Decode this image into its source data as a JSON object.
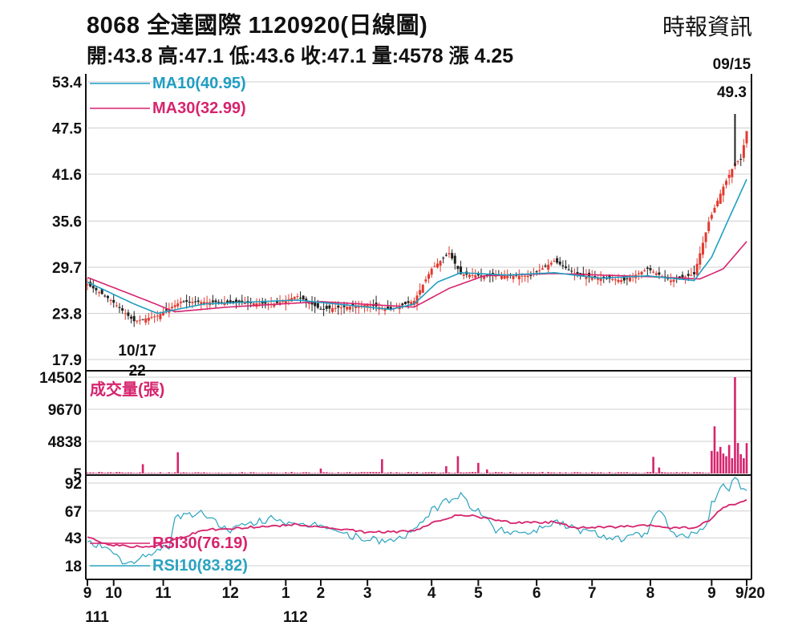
{
  "header": {
    "title": "8068  全達國際 1120920(日線圖)",
    "ohlc": "開:43.8 高:47.1 低:43.6 收:47.1 量:4578 漲 4.25",
    "source": "時報資訊"
  },
  "colors": {
    "up": "#e23a2f",
    "down": "#222222",
    "ma10": "#1f9ec2",
    "ma30": "#d6246e",
    "volume": "#d6246e",
    "rsi30": "#d6246e",
    "rsi10": "#2aa3c0",
    "grid": "#cfcfcf"
  },
  "chart_data": [
    {
      "type": "candlestick",
      "name": "price",
      "y_ticks": [
        "53.4",
        "47.5",
        "41.6",
        "35.6",
        "29.7",
        "23.8",
        "17.9"
      ],
      "ylim": [
        17.9,
        53.4
      ],
      "legend": [
        {
          "label": "MA10(40.95)",
          "color": "#1f9ec2"
        },
        {
          "label": "MA30(32.99)",
          "color": "#d6246e"
        }
      ],
      "annotations": [
        {
          "text": "09/15",
          "text2": "49.3",
          "x": 222,
          "y": 49.3
        },
        {
          "text": "10/17",
          "text2": "22",
          "x": 16,
          "y": 22
        }
      ],
      "close_anchors": [
        [
          0,
          27.5
        ],
        [
          8,
          25.5
        ],
        [
          16,
          22.8
        ],
        [
          24,
          23.5
        ],
        [
          32,
          25.3
        ],
        [
          48,
          25.2
        ],
        [
          64,
          25.0
        ],
        [
          72,
          26.0
        ],
        [
          80,
          24.3
        ],
        [
          96,
          24.9
        ],
        [
          104,
          24.3
        ],
        [
          112,
          25.4
        ],
        [
          118,
          29.5
        ],
        [
          124,
          31.5
        ],
        [
          128,
          28.8
        ],
        [
          136,
          28.6
        ],
        [
          152,
          28.6
        ],
        [
          160,
          30.5
        ],
        [
          168,
          28.7
        ],
        [
          184,
          28.0
        ],
        [
          192,
          29.5
        ],
        [
          200,
          28.0
        ],
        [
          208,
          28.8
        ],
        [
          213,
          35.5
        ],
        [
          218,
          40.0
        ],
        [
          222,
          43.0
        ],
        [
          224,
          43.5
        ],
        [
          226,
          47.1
        ]
      ],
      "ma10_anchors": [
        [
          0,
          27.8
        ],
        [
          16,
          25.0
        ],
        [
          24,
          23.8
        ],
        [
          40,
          25.0
        ],
        [
          72,
          25.5
        ],
        [
          96,
          24.6
        ],
        [
          104,
          24.3
        ],
        [
          112,
          25.0
        ],
        [
          120,
          27.8
        ],
        [
          128,
          29.0
        ],
        [
          144,
          28.7
        ],
        [
          160,
          29.0
        ],
        [
          176,
          28.3
        ],
        [
          192,
          28.6
        ],
        [
          208,
          28.0
        ],
        [
          214,
          31.0
        ],
        [
          220,
          36.0
        ],
        [
          226,
          40.95
        ]
      ],
      "ma30_anchors": [
        [
          0,
          28.4
        ],
        [
          20,
          25.5
        ],
        [
          30,
          24.0
        ],
        [
          48,
          24.6
        ],
        [
          80,
          25.3
        ],
        [
          112,
          24.6
        ],
        [
          124,
          27.0
        ],
        [
          136,
          28.6
        ],
        [
          160,
          28.9
        ],
        [
          192,
          28.5
        ],
        [
          210,
          28.2
        ],
        [
          218,
          29.5
        ],
        [
          226,
          32.99
        ]
      ]
    },
    {
      "type": "bar",
      "name": "volume",
      "label": "成交量(張)",
      "y_ticks": [
        "14502",
        "9670",
        "4838",
        "5"
      ],
      "ylim": [
        5,
        14502
      ],
      "spikes": [
        [
          19,
          1400
        ],
        [
          31,
          3200
        ],
        [
          80,
          750
        ],
        [
          101,
          2150
        ],
        [
          123,
          1100
        ],
        [
          127,
          2600
        ],
        [
          134,
          1600
        ],
        [
          137,
          600
        ],
        [
          194,
          2500
        ],
        [
          196,
          900
        ],
        [
          214,
          3400
        ],
        [
          215,
          7100
        ],
        [
          216,
          3300
        ],
        [
          217,
          4000
        ],
        [
          218,
          3000
        ],
        [
          219,
          2600
        ],
        [
          220,
          4300
        ],
        [
          221,
          2300
        ],
        [
          222,
          14502
        ],
        [
          223,
          4600
        ],
        [
          224,
          2900
        ],
        [
          225,
          2300
        ],
        [
          226,
          4578
        ]
      ]
    },
    {
      "type": "line",
      "name": "rsi",
      "y_ticks": [
        "92",
        "67",
        "43",
        "18"
      ],
      "legend": [
        {
          "label": "RSI30(76.19)",
          "color": "#d6246e"
        },
        {
          "label": "RSI10(83.82)",
          "color": "#2aa3c0"
        }
      ],
      "rsi30_anchors": [
        [
          0,
          43
        ],
        [
          8,
          37
        ],
        [
          16,
          35
        ],
        [
          24,
          36
        ],
        [
          28,
          40
        ],
        [
          40,
          50
        ],
        [
          72,
          55
        ],
        [
          96,
          48
        ],
        [
          112,
          49
        ],
        [
          120,
          58
        ],
        [
          128,
          64
        ],
        [
          136,
          61
        ],
        [
          144,
          57
        ],
        [
          160,
          57
        ],
        [
          168,
          52
        ],
        [
          184,
          53
        ],
        [
          194,
          54
        ],
        [
          200,
          52
        ],
        [
          208,
          52
        ],
        [
          213,
          58
        ],
        [
          218,
          70
        ],
        [
          220,
          72
        ],
        [
          226,
          76.19
        ]
      ],
      "rsi10_anchors": [
        [
          0,
          42
        ],
        [
          6,
          33
        ],
        [
          12,
          22
        ],
        [
          16,
          20
        ],
        [
          22,
          30
        ],
        [
          28,
          36
        ],
        [
          30,
          62
        ],
        [
          40,
          65
        ],
        [
          48,
          50
        ],
        [
          56,
          55
        ],
        [
          64,
          62
        ],
        [
          72,
          52
        ],
        [
          80,
          56
        ],
        [
          88,
          46
        ],
        [
          96,
          42
        ],
        [
          104,
          40
        ],
        [
          112,
          48
        ],
        [
          118,
          68
        ],
        [
          124,
          76
        ],
        [
          128,
          82
        ],
        [
          132,
          70
        ],
        [
          136,
          62
        ],
        [
          140,
          50
        ],
        [
          152,
          48
        ],
        [
          160,
          58
        ],
        [
          166,
          52
        ],
        [
          176,
          46
        ],
        [
          184,
          42
        ],
        [
          192,
          48
        ],
        [
          196,
          68
        ],
        [
          202,
          42
        ],
        [
          208,
          48
        ],
        [
          212,
          52
        ],
        [
          214,
          74
        ],
        [
          218,
          90
        ],
        [
          220,
          88
        ],
        [
          222,
          95
        ],
        [
          226,
          83.82
        ]
      ]
    }
  ],
  "x_axis": {
    "month_labels": [
      {
        "label": "9",
        "i": 0
      },
      {
        "label": "10",
        "i": 9
      },
      {
        "label": "11",
        "i": 26
      },
      {
        "label": "12",
        "i": 49
      },
      {
        "label": "1",
        "i": 68
      },
      {
        "label": "2",
        "i": 80
      },
      {
        "label": "3",
        "i": 96
      },
      {
        "label": "4",
        "i": 118
      },
      {
        "label": "5",
        "i": 134
      },
      {
        "label": "6",
        "i": 154
      },
      {
        "label": "7",
        "i": 173
      },
      {
        "label": "8",
        "i": 193
      },
      {
        "label": "9",
        "i": 214
      },
      {
        "label": "9/20",
        "i": 226
      }
    ],
    "year_labels": [
      {
        "label": "111",
        "i": 0
      },
      {
        "label": "112",
        "i": 68
      }
    ]
  }
}
